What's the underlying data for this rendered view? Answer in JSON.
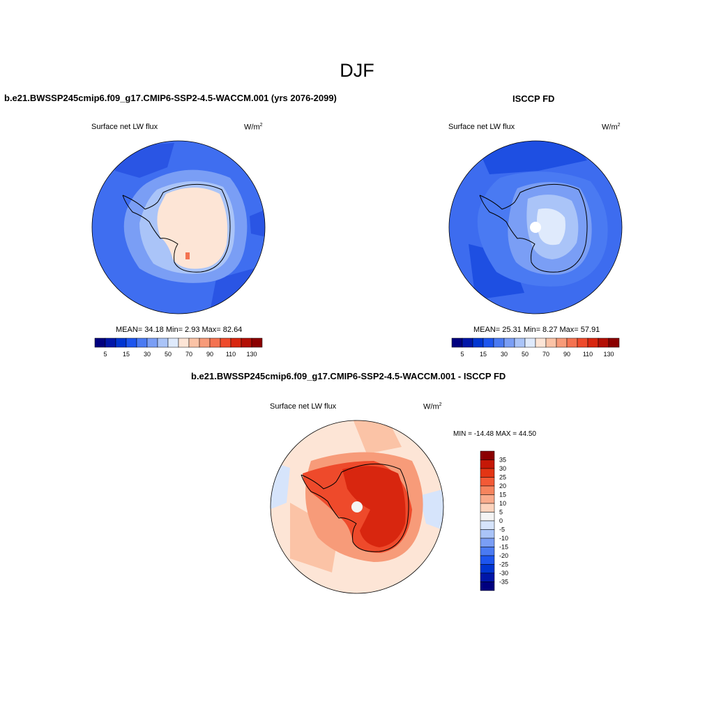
{
  "main_title": "DJF",
  "panels": {
    "model": {
      "title": "b.e21.BWSSP245cmip6.f09_g17.CMIP6-SSP2-4.5-WACCM.001 (yrs 2076-2099)",
      "left_label": "Surface net LW flux",
      "units_base": "W/m",
      "units_exp": "2",
      "stats": "MEAN=  34.18  Min=   2.93  Max=  82.64"
    },
    "obs": {
      "title": "ISCCP FD",
      "left_label": "Surface net LW flux",
      "units_base": "W/m",
      "units_exp": "2",
      "stats": "MEAN=  25.31  Min=   8.27  Max=  57.91"
    },
    "diff": {
      "title": "b.e21.BWSSP245cmip6.f09_g17.CMIP6-SSP2-4.5-WACCM.001 - ISCCP FD",
      "left_label": "Surface net LW flux",
      "units_base": "W/m",
      "units_exp": "2",
      "stats": "MIN = -14.48 MAX =  44.50"
    }
  },
  "colorbars": {
    "horizontal": {
      "colors": [
        "#00007f",
        "#0016a8",
        "#0035d1",
        "#1d55ee",
        "#4a7af2",
        "#7a9ef5",
        "#aac4f8",
        "#dfeafc",
        "#fde5d6",
        "#fbc3a6",
        "#f79b79",
        "#f47351",
        "#ee4a2b",
        "#d8260f",
        "#b30f05",
        "#8b0000"
      ],
      "labels": [
        "5",
        "15",
        "30",
        "50",
        "70",
        "90",
        "110",
        "130"
      ]
    },
    "vertical": {
      "colors": [
        "#8b0000",
        "#c51807",
        "#e33514",
        "#f35a36",
        "#f6845e",
        "#f9ab8c",
        "#fcd3bd",
        "#f4f4f4",
        "#d6e4fb",
        "#aac4f8",
        "#7a9ef5",
        "#4a7af2",
        "#1d55ee",
        "#0035d1",
        "#0016a8",
        "#00007f"
      ],
      "labels": [
        "35",
        "30",
        "25",
        "20",
        "15",
        "10",
        "5",
        "0",
        "-5",
        "-10",
        "-15",
        "-20",
        "-25",
        "-30",
        "-35"
      ]
    }
  },
  "maps": {
    "model": {
      "ocean": "#3f6ef0",
      "deep": "#2a55e4",
      "shelf": "#7a9ef5",
      "coast": "#aac4f8",
      "interior": "#fde5d6",
      "blotch": "#f47351"
    },
    "obs": {
      "ocean": "#3d6cef",
      "deep": "#1e4fe2",
      "shelf": "#4a7af2",
      "coast": "#7a9ef5",
      "interior": "#aac4f8",
      "blotch": "#dfeafc"
    },
    "diff": {
      "ocean": "#fde5d6",
      "deep": "#fbc3a6",
      "shelf": "#f79b79",
      "coast": "#ee4a2b",
      "interior": "#d8260f",
      "blotch": "#f4f4f4"
    }
  }
}
